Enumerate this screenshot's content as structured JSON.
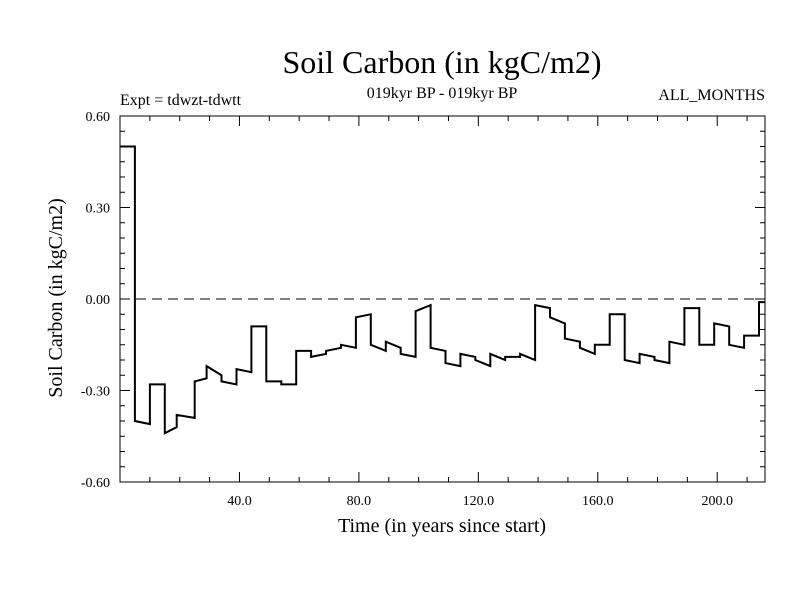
{
  "chart_data": {
    "type": "line",
    "title": "Soil Carbon (in kgC/m2)",
    "subtitle": "019kyr BP - 019kyr BP",
    "left_annotation": "Expt = tdwzt-tdwtt",
    "right_annotation": "ALL_MONTHS",
    "xlabel": "Time (in years since start)",
    "ylabel": "Soil Carbon (in kgC/m2)",
    "xlim": [
      0,
      216
    ],
    "ylim": [
      -0.6,
      0.6
    ],
    "x_ticks": [
      40,
      80,
      120,
      160,
      200
    ],
    "x_tick_labels": [
      "40.0",
      "80.0",
      "120.0",
      "160.0",
      "200.0"
    ],
    "y_ticks": [
      0.6,
      0.3,
      0.0,
      -0.3,
      -0.6
    ],
    "y_tick_labels": [
      "0.60",
      "0.30",
      "0.00",
      "-0.30",
      "-0.60"
    ],
    "reference_line": {
      "y": 0.0,
      "style": "dashed"
    },
    "series": [
      {
        "name": "Soil Carbon",
        "segments": [
          {
            "x_start": 0,
            "x_end": 5,
            "y_start": 0.5,
            "y_end": 0.5
          },
          {
            "x_start": 5,
            "x_end": 10,
            "y_start": -0.4,
            "y_end": -0.41
          },
          {
            "x_start": 10,
            "x_end": 15,
            "y_start": -0.28,
            "y_end": -0.28
          },
          {
            "x_start": 15,
            "x_end": 19,
            "y_start": -0.44,
            "y_end": -0.42
          },
          {
            "x_start": 19,
            "x_end": 25,
            "y_start": -0.38,
            "y_end": -0.39
          },
          {
            "x_start": 25,
            "x_end": 29,
            "y_start": -0.27,
            "y_end": -0.26
          },
          {
            "x_start": 29,
            "x_end": 34,
            "y_start": -0.22,
            "y_end": -0.25
          },
          {
            "x_start": 34,
            "x_end": 39,
            "y_start": -0.27,
            "y_end": -0.28
          },
          {
            "x_start": 39,
            "x_end": 44,
            "y_start": -0.23,
            "y_end": -0.24
          },
          {
            "x_start": 44,
            "x_end": 49,
            "y_start": -0.09,
            "y_end": -0.09
          },
          {
            "x_start": 49,
            "x_end": 54,
            "y_start": -0.27,
            "y_end": -0.27
          },
          {
            "x_start": 54,
            "x_end": 59,
            "y_start": -0.28,
            "y_end": -0.28
          },
          {
            "x_start": 59,
            "x_end": 64,
            "y_start": -0.17,
            "y_end": -0.17
          },
          {
            "x_start": 64,
            "x_end": 69,
            "y_start": -0.19,
            "y_end": -0.18
          },
          {
            "x_start": 69,
            "x_end": 74,
            "y_start": -0.17,
            "y_end": -0.16
          },
          {
            "x_start": 74,
            "x_end": 79,
            "y_start": -0.15,
            "y_end": -0.16
          },
          {
            "x_start": 79,
            "x_end": 84,
            "y_start": -0.06,
            "y_end": -0.05
          },
          {
            "x_start": 84,
            "x_end": 89,
            "y_start": -0.15,
            "y_end": -0.17
          },
          {
            "x_start": 89,
            "x_end": 94,
            "y_start": -0.14,
            "y_end": -0.16
          },
          {
            "x_start": 94,
            "x_end": 99,
            "y_start": -0.18,
            "y_end": -0.19
          },
          {
            "x_start": 99,
            "x_end": 104,
            "y_start": -0.04,
            "y_end": -0.02
          },
          {
            "x_start": 104,
            "x_end": 109,
            "y_start": -0.16,
            "y_end": -0.17
          },
          {
            "x_start": 109,
            "x_end": 114,
            "y_start": -0.21,
            "y_end": -0.22
          },
          {
            "x_start": 114,
            "x_end": 119,
            "y_start": -0.18,
            "y_end": -0.19
          },
          {
            "x_start": 119,
            "x_end": 124,
            "y_start": -0.2,
            "y_end": -0.22
          },
          {
            "x_start": 124,
            "x_end": 129,
            "y_start": -0.18,
            "y_end": -0.2
          },
          {
            "x_start": 129,
            "x_end": 134,
            "y_start": -0.19,
            "y_end": -0.19
          },
          {
            "x_start": 134,
            "x_end": 139,
            "y_start": -0.18,
            "y_end": -0.2
          },
          {
            "x_start": 139,
            "x_end": 144,
            "y_start": -0.02,
            "y_end": -0.03
          },
          {
            "x_start": 144,
            "x_end": 149,
            "y_start": -0.06,
            "y_end": -0.08
          },
          {
            "x_start": 149,
            "x_end": 154,
            "y_start": -0.13,
            "y_end": -0.14
          },
          {
            "x_start": 154,
            "x_end": 159,
            "y_start": -0.16,
            "y_end": -0.18
          },
          {
            "x_start": 159,
            "x_end": 164,
            "y_start": -0.15,
            "y_end": -0.15
          },
          {
            "x_start": 164,
            "x_end": 169,
            "y_start": -0.05,
            "y_end": -0.05
          },
          {
            "x_start": 169,
            "x_end": 174,
            "y_start": -0.2,
            "y_end": -0.21
          },
          {
            "x_start": 174,
            "x_end": 179,
            "y_start": -0.18,
            "y_end": -0.19
          },
          {
            "x_start": 179,
            "x_end": 184,
            "y_start": -0.2,
            "y_end": -0.21
          },
          {
            "x_start": 184,
            "x_end": 189,
            "y_start": -0.14,
            "y_end": -0.15
          },
          {
            "x_start": 189,
            "x_end": 194,
            "y_start": -0.03,
            "y_end": -0.03
          },
          {
            "x_start": 194,
            "x_end": 199,
            "y_start": -0.15,
            "y_end": -0.15
          },
          {
            "x_start": 199,
            "x_end": 204,
            "y_start": -0.08,
            "y_end": -0.09
          },
          {
            "x_start": 204,
            "x_end": 209,
            "y_start": -0.15,
            "y_end": -0.16
          },
          {
            "x_start": 209,
            "x_end": 214,
            "y_start": -0.12,
            "y_end": -0.12
          },
          {
            "x_start": 214,
            "x_end": 216,
            "y_start": -0.01,
            "y_end": -0.01
          }
        ]
      }
    ]
  },
  "colors": {
    "background": "#ffffff",
    "line": "#000000",
    "axes": "#000000"
  }
}
